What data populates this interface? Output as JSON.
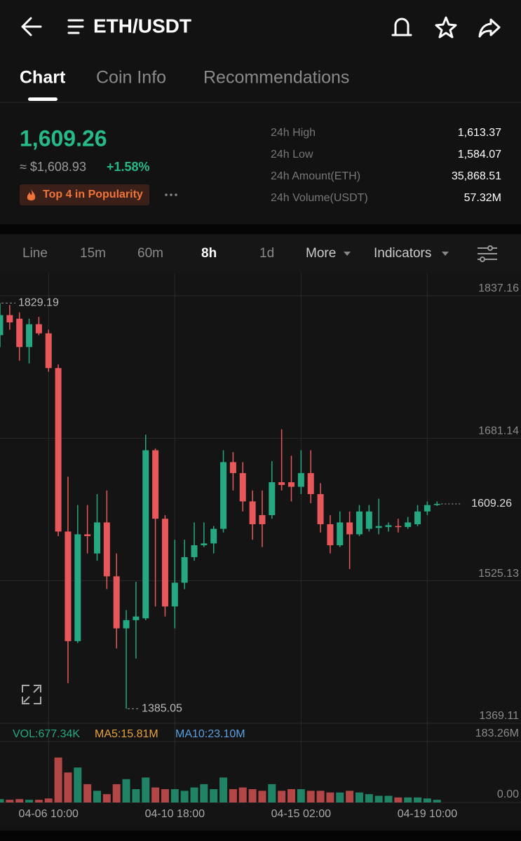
{
  "header": {
    "title": "ETH/USDT"
  },
  "tabs": [
    "Chart",
    "Coin Info",
    "Recommendations"
  ],
  "price": {
    "last": "1,609.26",
    "usd": "≈ $1,608.93",
    "change": "+1.58%",
    "badge": "Top 4 in Popularity"
  },
  "stats": [
    [
      "24h High",
      "1,613.37"
    ],
    [
      "24h Low",
      "1,584.07"
    ],
    [
      "24h Amount(ETH)",
      "35,868.51"
    ],
    [
      "24h Volume(USDT)",
      "57.32M"
    ]
  ],
  "toolbar": [
    "Line",
    "15m",
    "60m",
    "8h",
    "1d",
    "More",
    "Indicators"
  ],
  "chart_data": [
    {
      "type": "candlestick",
      "categories": [
        null,
        null,
        null,
        null,
        null,
        "04-06 10:00",
        null,
        null,
        null,
        null,
        null,
        null,
        null,
        null,
        null,
        null,
        null,
        null,
        "04-10 18:00",
        null,
        null,
        null,
        null,
        null,
        null,
        null,
        null,
        null,
        null,
        null,
        null,
        "04-15 02:00",
        null,
        null,
        null,
        null,
        null,
        null,
        null,
        null,
        null,
        null,
        null,
        null,
        "04-19 10:00",
        null
      ],
      "open": [
        1794,
        1816,
        1812,
        1781,
        1806,
        1796,
        1758,
        1579,
        1459,
        1576,
        1555,
        1589,
        1530,
        1473,
        1482,
        1484,
        1668,
        1593,
        1497,
        1523,
        1551,
        1564,
        1566,
        1582,
        1655,
        1643,
        1612,
        1597,
        1597,
        1633,
        1633,
        1628,
        1643,
        1620,
        1587,
        1564,
        1589,
        1576,
        1582,
        1583,
        1584,
        1585,
        1584,
        1587,
        1601,
        1608
      ],
      "high": [
        1829.19,
        1827,
        1819,
        1812,
        1814,
        1800,
        1762,
        1639,
        1608,
        1608,
        1620,
        1624,
        1555,
        1493,
        1524,
        1685,
        1670,
        1597,
        1570,
        1570,
        1589,
        1589,
        1585,
        1668,
        1666,
        1655,
        1624,
        1624,
        1656,
        1691,
        1662,
        1668,
        1668,
        1632,
        1597,
        1601,
        1601,
        1608,
        1608,
        1615,
        1589,
        1593,
        1595,
        1608,
        1612,
        1612
      ],
      "low": [
        1781,
        1800,
        1766,
        1763,
        1794,
        1754,
        1574,
        1413,
        1457,
        1555,
        1547,
        1516,
        1451,
        1385.05,
        1440,
        1482,
        1497,
        1486,
        1473,
        1516,
        1547,
        1562,
        1555,
        1578,
        1624,
        1601,
        1570,
        1562,
        1593,
        1624,
        1612,
        1620,
        1610,
        1578,
        1555,
        1562,
        1538,
        1574,
        1579,
        1576,
        1579,
        1578,
        1582,
        1585,
        1597,
        1607
      ],
      "close": [
        1816,
        1808,
        1781,
        1806,
        1796,
        1758,
        1579,
        1459,
        1576,
        1574,
        1589,
        1530,
        1473,
        1482,
        1486,
        1668,
        1593,
        1497,
        1523,
        1551,
        1564,
        1566,
        1582,
        1655,
        1643,
        1612,
        1587,
        1587,
        1633,
        1630,
        1628,
        1643,
        1620,
        1587,
        1564,
        1589,
        1576,
        1601,
        1601,
        1585,
        1586,
        1584,
        1589,
        1601,
        1608,
        1609.26
      ],
      "up_color": "#26a882",
      "down_color": "#e8585a",
      "ylim": [
        1369.11,
        1837.16
      ],
      "yticks": [
        1837.16,
        1681.14,
        1525.13,
        1369.11
      ],
      "grid": true
    },
    {
      "type": "bar",
      "values": [
        10,
        8,
        10,
        8,
        8,
        12,
        135,
        90,
        105,
        55,
        35,
        25,
        55,
        70,
        40,
        75,
        45,
        40,
        40,
        35,
        45,
        55,
        40,
        75,
        40,
        45,
        40,
        35,
        55,
        35,
        40,
        40,
        35,
        35,
        30,
        30,
        35,
        30,
        25,
        20,
        20,
        15,
        15,
        15,
        12,
        8
      ],
      "ylim": [
        0,
        183.26
      ],
      "yticks": [
        {
          "value": 183.26,
          "label": "183.26M"
        },
        {
          "value": 0,
          "label": "0.00"
        }
      ],
      "legend": [
        {
          "name": "VOL:677.34K",
          "color": "#26a882"
        },
        {
          "name": "MA5:15.81M",
          "color": "#e8a23a"
        },
        {
          "name": "MA10:23.10M",
          "color": "#5aa0e0"
        }
      ]
    }
  ]
}
